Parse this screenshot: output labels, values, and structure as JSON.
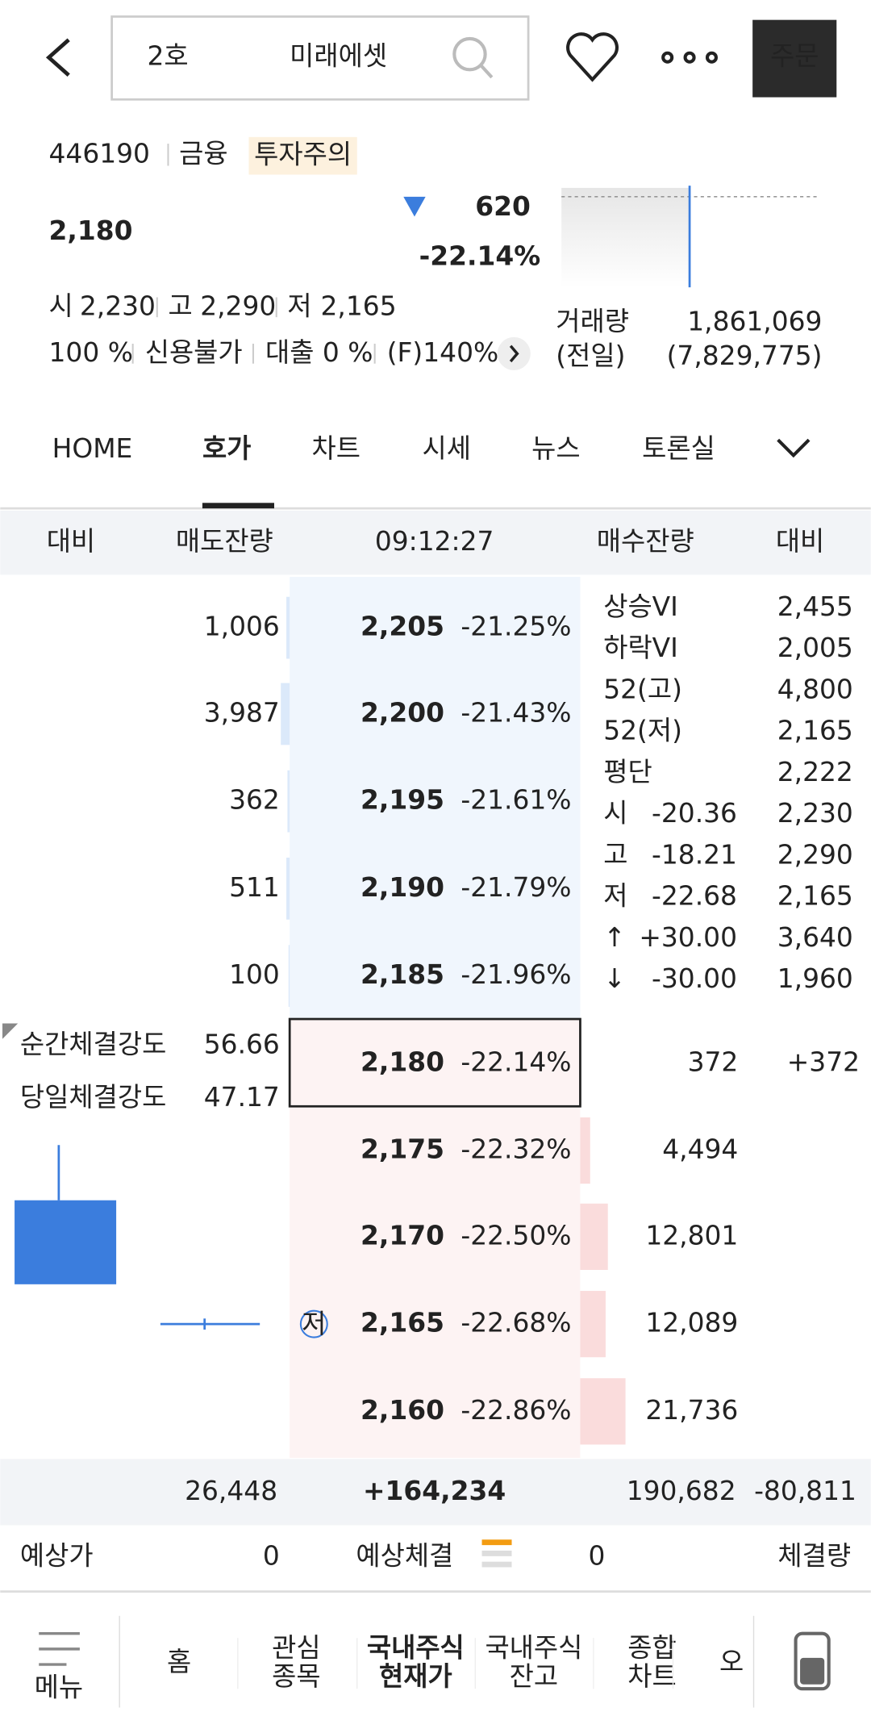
{
  "header": {
    "search_parts": [
      "2호",
      "미래에셋"
    ],
    "order_button": "주문"
  },
  "stock": {
    "code": "446190",
    "sector": "금융",
    "badge": "투자주의",
    "price": "2,180",
    "change": "620",
    "change_pct": "-22.14%",
    "ohl": [
      [
        "시",
        "2,230"
      ],
      [
        "고",
        "2,290"
      ],
      [
        "저",
        "2,165"
      ]
    ],
    "info": [
      "100 %",
      "신용불가",
      "대출 0 %",
      "(F)140%"
    ],
    "volume_label": "거래량",
    "volume": "1,861,069",
    "prev_label": "(전일)",
    "prev_volume": "(7,829,775)"
  },
  "tabs": {
    "items": [
      "HOME",
      "호가",
      "차트",
      "시세",
      "뉴스",
      "토론실"
    ],
    "active": 1
  },
  "orderbook": {
    "header": [
      "대비",
      "매도잔량",
      "09:12:27",
      "매수잔량",
      "대비"
    ],
    "asks": [
      [
        "1,006",
        "2,205",
        "-21.25%"
      ],
      [
        "3,987",
        "2,200",
        "-21.43%"
      ],
      [
        "362",
        "2,195",
        "-21.61%"
      ],
      [
        "511",
        "2,190",
        "-21.79%"
      ],
      [
        "100",
        "2,185",
        "-21.96%"
      ]
    ],
    "current": [
      "2,180",
      "-22.14%",
      "372",
      "+372"
    ],
    "bids": [
      [
        "2,175",
        "-22.32%",
        "4,494"
      ],
      [
        "2,170",
        "-22.50%",
        "12,801"
      ],
      [
        "2,165",
        "-22.68%",
        "12,089"
      ],
      [
        "2,160",
        "-22.86%",
        "21,736"
      ]
    ],
    "low_marker": "저",
    "side": [
      [
        "상승VI",
        "",
        "2,455"
      ],
      [
        "하락VI",
        "",
        "2,005"
      ],
      [
        "52(고)",
        "",
        "4,800"
      ],
      [
        "52(저)",
        "",
        "2,165"
      ],
      [
        "평단",
        "",
        "2,222"
      ],
      [
        "시",
        "-20.36",
        "2,230"
      ],
      [
        "고",
        "-18.21",
        "2,290"
      ],
      [
        "저",
        "-22.68",
        "2,165"
      ],
      [
        "↑",
        "+30.00",
        "3,640"
      ],
      [
        "↓",
        "-30.00",
        "1,960"
      ]
    ],
    "strength": [
      [
        "순간체결강도",
        "56.66"
      ],
      [
        "당일체결강도",
        "47.17"
      ]
    ],
    "totals": [
      "26,448",
      "+164,234",
      "190,682",
      "-80,811"
    ],
    "expected": [
      "예상가",
      "0",
      "예상체결",
      "0",
      "체결량"
    ]
  },
  "nav": [
    [
      "메뉴"
    ],
    [
      "홈"
    ],
    [
      "관심",
      "종목"
    ],
    [
      "국내주식",
      "현재가"
    ],
    [
      "국내주식",
      "잔고"
    ],
    [
      "종합",
      "차트"
    ],
    [
      "오"
    ]
  ]
}
